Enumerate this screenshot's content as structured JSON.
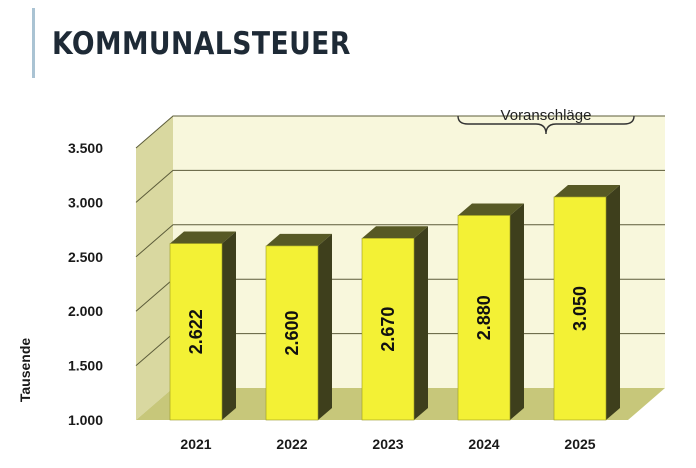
{
  "page": {
    "title": "KOMMUNALSTEUER"
  },
  "chart_data": {
    "type": "bar",
    "categories": [
      "2021",
      "2022",
      "2023",
      "2024",
      "2025"
    ],
    "values": [
      2622,
      2600,
      2670,
      2880,
      3050
    ],
    "value_labels": [
      "2.622",
      "2.600",
      "2.670",
      "2.880",
      "3.050"
    ],
    "yticks": [
      1000,
      1500,
      2000,
      2500,
      3000,
      3500
    ],
    "ytick_labels": [
      "1.000",
      "1.500",
      "2.000",
      "2.500",
      "3.000",
      "3.500"
    ],
    "ylim": [
      1000,
      3500
    ],
    "ylabel": "Tausende",
    "xlabel": "",
    "grid": true,
    "annotation": {
      "text": "Voranschläge",
      "spans": [
        "2024",
        "2025"
      ]
    },
    "colors": {
      "bar_front": "#f3f135",
      "bar_side": "#3e3f1c",
      "bar_top": "#575925",
      "back_wall": "#f8f7dc",
      "side_wall": "#d9d8a0",
      "floor": "#c7c77a",
      "grid": "#5c5c3a"
    }
  }
}
